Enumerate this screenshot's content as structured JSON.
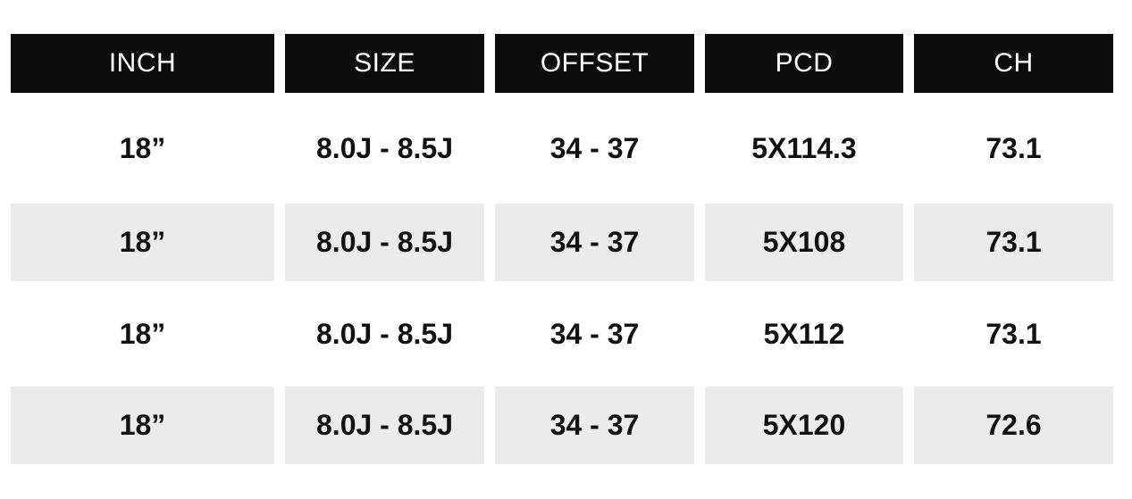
{
  "colors": {
    "page_bg": "#ffffff",
    "header_bg": "#0d0d0d",
    "header_text": "#ffffff",
    "shaded_row_bg": "#ebebeb",
    "data_text": "#111111"
  },
  "table": {
    "columns": [
      {
        "key": "inch",
        "label": "INCH"
      },
      {
        "key": "size",
        "label": "SIZE"
      },
      {
        "key": "offset",
        "label": "OFFSET"
      },
      {
        "key": "pcd",
        "label": "PCD"
      },
      {
        "key": "ch",
        "label": "CH"
      }
    ],
    "rows": [
      {
        "inch": "18”",
        "size": "8.0J - 8.5J",
        "offset": "34 - 37",
        "pcd": "5X114.3",
        "ch": "73.1",
        "shaded": false
      },
      {
        "inch": "18”",
        "size": "8.0J - 8.5J",
        "offset": "34 - 37",
        "pcd": "5X108",
        "ch": "73.1",
        "shaded": true
      },
      {
        "inch": "18”",
        "size": "8.0J - 8.5J",
        "offset": "34 - 37",
        "pcd": "5X112",
        "ch": "73.1",
        "shaded": false
      },
      {
        "inch": "18”",
        "size": "8.0J - 8.5J",
        "offset": "34 - 37",
        "pcd": "5X120",
        "ch": "72.6",
        "shaded": true
      }
    ]
  },
  "chart_data": {
    "type": "table",
    "title": "",
    "columns": [
      "INCH",
      "SIZE",
      "OFFSET",
      "PCD",
      "CH"
    ],
    "rows": [
      [
        "18”",
        "8.0J - 8.5J",
        "34 - 37",
        "5X114.3",
        "73.1"
      ],
      [
        "18”",
        "8.0J - 8.5J",
        "34 - 37",
        "5X108",
        "73.1"
      ],
      [
        "18”",
        "8.0J - 8.5J",
        "34 - 37",
        "5X112",
        "73.1"
      ],
      [
        "18”",
        "8.0J - 8.5J",
        "34 - 37",
        "5X120",
        "72.6"
      ]
    ]
  }
}
